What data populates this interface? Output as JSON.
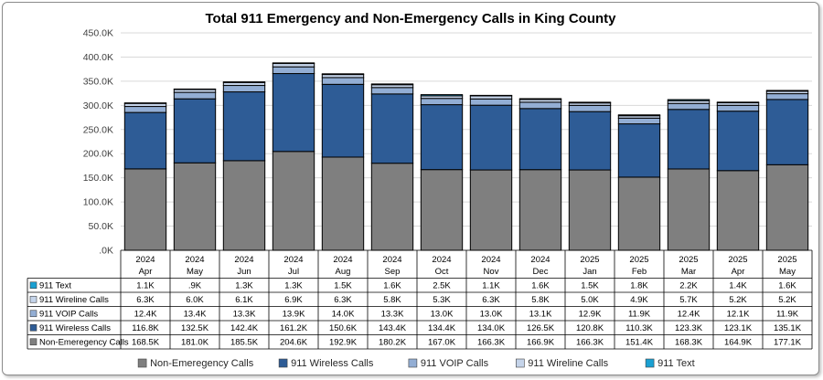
{
  "chart_data": {
    "type": "bar",
    "stacked": true,
    "title": "Total 911 Emergency and Non-Emergency Calls in King County",
    "ylim": [
      0,
      450000
    ],
    "yticks": [
      ".0K",
      "50.0K",
      "100.0K",
      "150.0K",
      "200.0K",
      "250.0K",
      "300.0K",
      "350.0K",
      "400.0K",
      "450.0K"
    ],
    "grid": true,
    "legend_position": "bottom",
    "categories": [
      {
        "year": "2024",
        "month": "Apr"
      },
      {
        "year": "2024",
        "month": "May"
      },
      {
        "year": "2024",
        "month": "Jun"
      },
      {
        "year": "2024",
        "month": "Jul"
      },
      {
        "year": "2024",
        "month": "Aug"
      },
      {
        "year": "2024",
        "month": "Sep"
      },
      {
        "year": "2024",
        "month": "Oct"
      },
      {
        "year": "2024",
        "month": "Nov"
      },
      {
        "year": "2024",
        "month": "Dec"
      },
      {
        "year": "2025",
        "month": "Jan"
      },
      {
        "year": "2025",
        "month": "Feb"
      },
      {
        "year": "2025",
        "month": "Mar"
      },
      {
        "year": "2025",
        "month": "Apr"
      },
      {
        "year": "2025",
        "month": "May"
      }
    ],
    "series": [
      {
        "name": "Non-Emeregency Calls",
        "color": "#7f7f7f",
        "values": [
          168500,
          181000,
          185500,
          204600,
          192900,
          180200,
          167000,
          166300,
          166900,
          166300,
          151400,
          168300,
          164900,
          177100
        ],
        "labels": [
          "168.5K",
          "181.0K",
          "185.5K",
          "204.6K",
          "192.9K",
          "180.2K",
          "167.0K",
          "166.3K",
          "166.9K",
          "166.3K",
          "151.4K",
          "168.3K",
          "164.9K",
          "177.1K"
        ]
      },
      {
        "name": "911 Wireless Calls",
        "color": "#2e5c96",
        "values": [
          116800,
          132500,
          142400,
          161200,
          150600,
          143400,
          134400,
          134000,
          126500,
          120800,
          110300,
          123300,
          123100,
          135100
        ],
        "labels": [
          "116.8K",
          "132.5K",
          "142.4K",
          "161.2K",
          "150.6K",
          "143.4K",
          "134.4K",
          "134.0K",
          "126.5K",
          "120.8K",
          "110.3K",
          "123.3K",
          "123.1K",
          "135.1K"
        ]
      },
      {
        "name": "911 VOIP Calls",
        "color": "#93aed4",
        "values": [
          12400,
          13400,
          13300,
          13900,
          14000,
          13300,
          13000,
          13000,
          13100,
          12900,
          11900,
          12400,
          12100,
          11900
        ],
        "labels": [
          "12.4K",
          "13.4K",
          "13.3K",
          "13.9K",
          "14.0K",
          "13.3K",
          "13.0K",
          "13.0K",
          "13.1K",
          "12.9K",
          "11.9K",
          "12.4K",
          "12.1K",
          "11.9K"
        ]
      },
      {
        "name": "911 Wireline Calls",
        "color": "#c5d4ea",
        "values": [
          6300,
          6000,
          6100,
          6900,
          6300,
          5800,
          5300,
          6300,
          5800,
          5000,
          4900,
          5700,
          5200,
          5200
        ],
        "labels": [
          "6.3K",
          "6.0K",
          "6.1K",
          "6.9K",
          "6.3K",
          "5.8K",
          "5.3K",
          "6.3K",
          "5.8K",
          "5.0K",
          "4.9K",
          "5.7K",
          "5.2K",
          "5.2K"
        ]
      },
      {
        "name": "911 Text",
        "color": "#1aa0d2",
        "values": [
          1100,
          900,
          1300,
          1300,
          1500,
          1600,
          2500,
          1100,
          1600,
          1500,
          1800,
          2200,
          1400,
          1600
        ],
        "labels": [
          "1.1K",
          ".9K",
          "1.3K",
          "1.3K",
          "1.5K",
          "1.6K",
          "2.5K",
          "1.1K",
          "1.6K",
          "1.5K",
          "1.8K",
          "2.2K",
          "1.4K",
          "1.6K"
        ]
      }
    ],
    "table_row_order": [
      "911 Text",
      "911 Wireline Calls",
      "911 VOIP Calls",
      "911 Wireless Calls",
      "Non-Emeregency Calls"
    ],
    "legend_order": [
      "Non-Emeregency Calls",
      "911 Wireless Calls",
      "911 VOIP Calls",
      "911 Wireline Calls",
      "911 Text"
    ]
  }
}
